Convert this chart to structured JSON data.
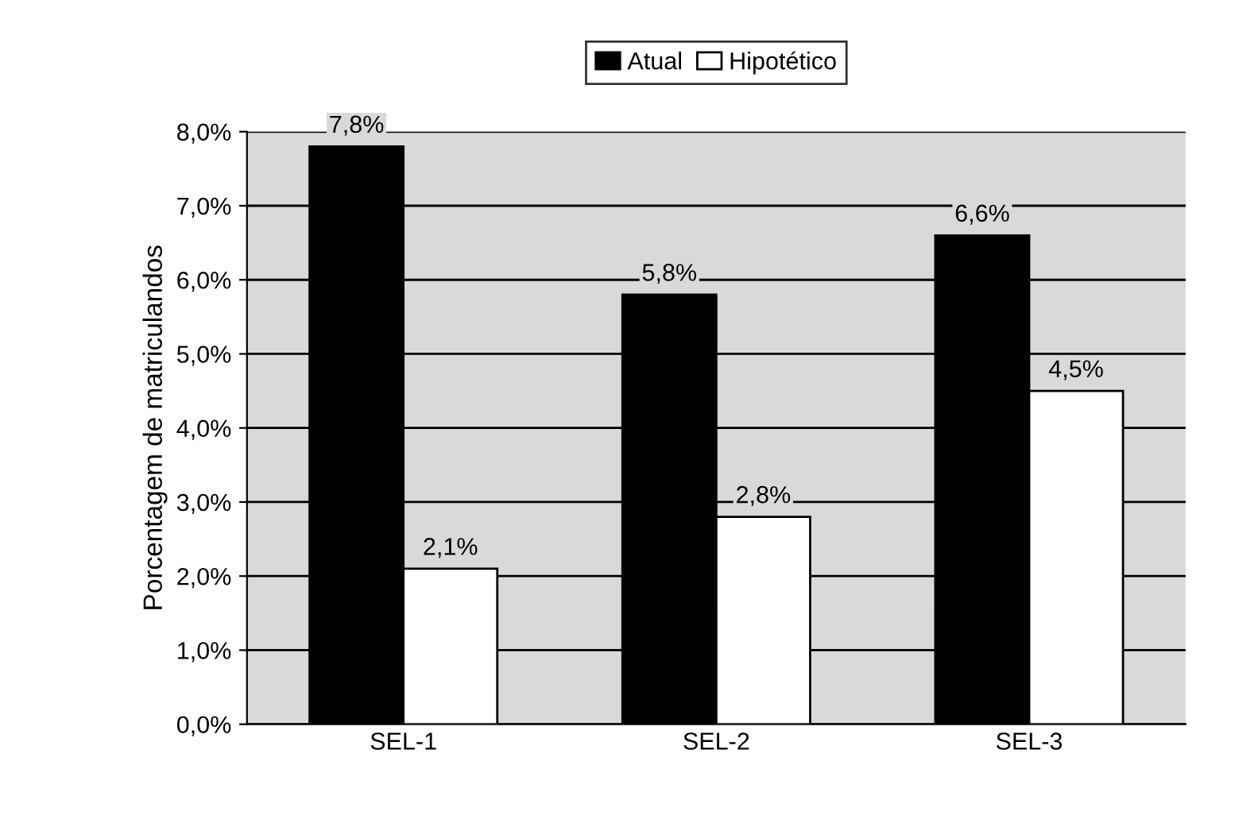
{
  "chart_data": {
    "type": "bar",
    "ylabel": "Porcentagem de matriculandos",
    "categories": [
      "SEL-1",
      "SEL-2",
      "SEL-3"
    ],
    "series": [
      {
        "name": "Atual",
        "color": "#000000",
        "values": [
          7.8,
          5.8,
          6.6
        ],
        "value_labels": [
          "7,8%",
          "5,8%",
          "6,6%"
        ]
      },
      {
        "name": "Hipotético",
        "color": "#ffffff",
        "values": [
          2.1,
          2.8,
          4.5
        ],
        "value_labels": [
          "2,1%",
          "2,8%",
          "4,5%"
        ]
      }
    ],
    "ylim": [
      0,
      8
    ],
    "yticks": [
      {
        "value": 0,
        "label": "0,0%"
      },
      {
        "value": 1,
        "label": "1,0%"
      },
      {
        "value": 2,
        "label": "2,0%"
      },
      {
        "value": 3,
        "label": "3,0%"
      },
      {
        "value": 4,
        "label": "4,0%"
      },
      {
        "value": 5,
        "label": "5,0%"
      },
      {
        "value": 6,
        "label": "6,0%"
      },
      {
        "value": 7,
        "label": "7,0%"
      },
      {
        "value": 8,
        "label": "8,0%"
      }
    ],
    "grid": "y",
    "legend": "top"
  }
}
